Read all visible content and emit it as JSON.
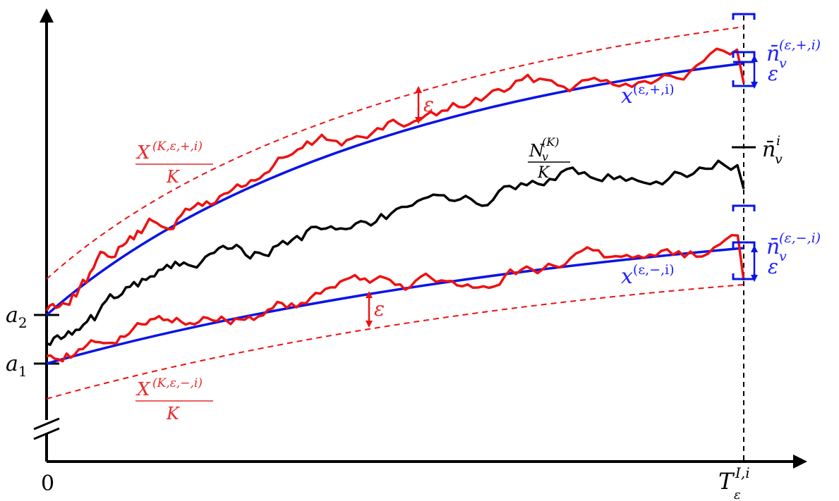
{
  "colors": {
    "axis": "#000000",
    "blue": "#0a14e6",
    "label_blue": "#2020ff",
    "red": "#ee1111",
    "label_red": "#e52a2a",
    "black_path": "#000000"
  },
  "labels": {
    "origin": "0",
    "a1": {
      "main": "a",
      "sub": "1"
    },
    "a2": {
      "main": "a",
      "sub": "2"
    },
    "t_end": {
      "main": "T",
      "sup": "I,i",
      "sub": "ε"
    },
    "eps": "ε",
    "x_plus": {
      "main": "x",
      "sup": "(ε,+,i)"
    },
    "x_minus": {
      "main": "x",
      "sup": "(ε,−,i)"
    },
    "n_plus": {
      "main": "n̄",
      "sub": "v",
      "sup": "(ε,+,i)"
    },
    "n_minus": {
      "main": "n̄",
      "sub": "v",
      "sup": "(ε,−,i)"
    },
    "n_mid": {
      "main": "n̄",
      "sub": "v",
      "sup": "i"
    },
    "X_plus": {
      "num_main": "X",
      "num_sup": "(K,ε,+,i)",
      "den": "K"
    },
    "X_minus": {
      "num_main": "X",
      "num_sup": "(K,ε,−,i)",
      "den": "K"
    },
    "N_frac": {
      "num_main": "N",
      "num_sub": "v",
      "num_sup": "(K)",
      "den": "K"
    }
  }
}
